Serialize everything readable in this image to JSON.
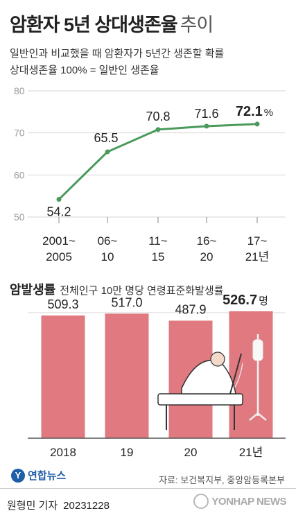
{
  "header": {
    "title": "암환자 5년 상대생존율",
    "subtitle": "추이",
    "desc_line1": "일반인과 비교했을 때 암환자가 5년간 생존할 확률",
    "desc_line2": "상대생존율 100% = 일반인 생존율"
  },
  "section2": {
    "title": "암발생률",
    "note": "전체인구 10만 명당 연령표준화발생률"
  },
  "footer": {
    "logo_text": "연합뉴스",
    "source": "자료: 보건복지부, 중앙암등록본부",
    "author": "원형민 기자",
    "date": "20231228",
    "agency": "YONHAP NEWS"
  },
  "chart_data": [
    {
      "type": "line",
      "categories": [
        [
          "2001~",
          "2005"
        ],
        [
          "06~",
          "10"
        ],
        [
          "11~",
          "15"
        ],
        [
          "16~",
          "20"
        ],
        [
          "17~",
          "21년"
        ]
      ],
      "values": [
        54.2,
        65.5,
        70.8,
        71.6,
        72.1
      ],
      "labels": [
        "54.2",
        "65.5",
        "70.8",
        "71.6",
        "72.1"
      ],
      "unit": "%",
      "yticks": [
        "80",
        "70",
        "60",
        "50"
      ],
      "ylim": [
        50,
        80
      ],
      "grid": true,
      "color": "#4a9a5c"
    },
    {
      "type": "bar",
      "categories": [
        "2018",
        "19",
        "20",
        "21년"
      ],
      "values": [
        509.3,
        517.0,
        487.9,
        526.7
      ],
      "labels": [
        "509.3",
        "517.0",
        "487.9",
        "526.7"
      ],
      "unit": "명",
      "color": "#e07a80"
    }
  ]
}
